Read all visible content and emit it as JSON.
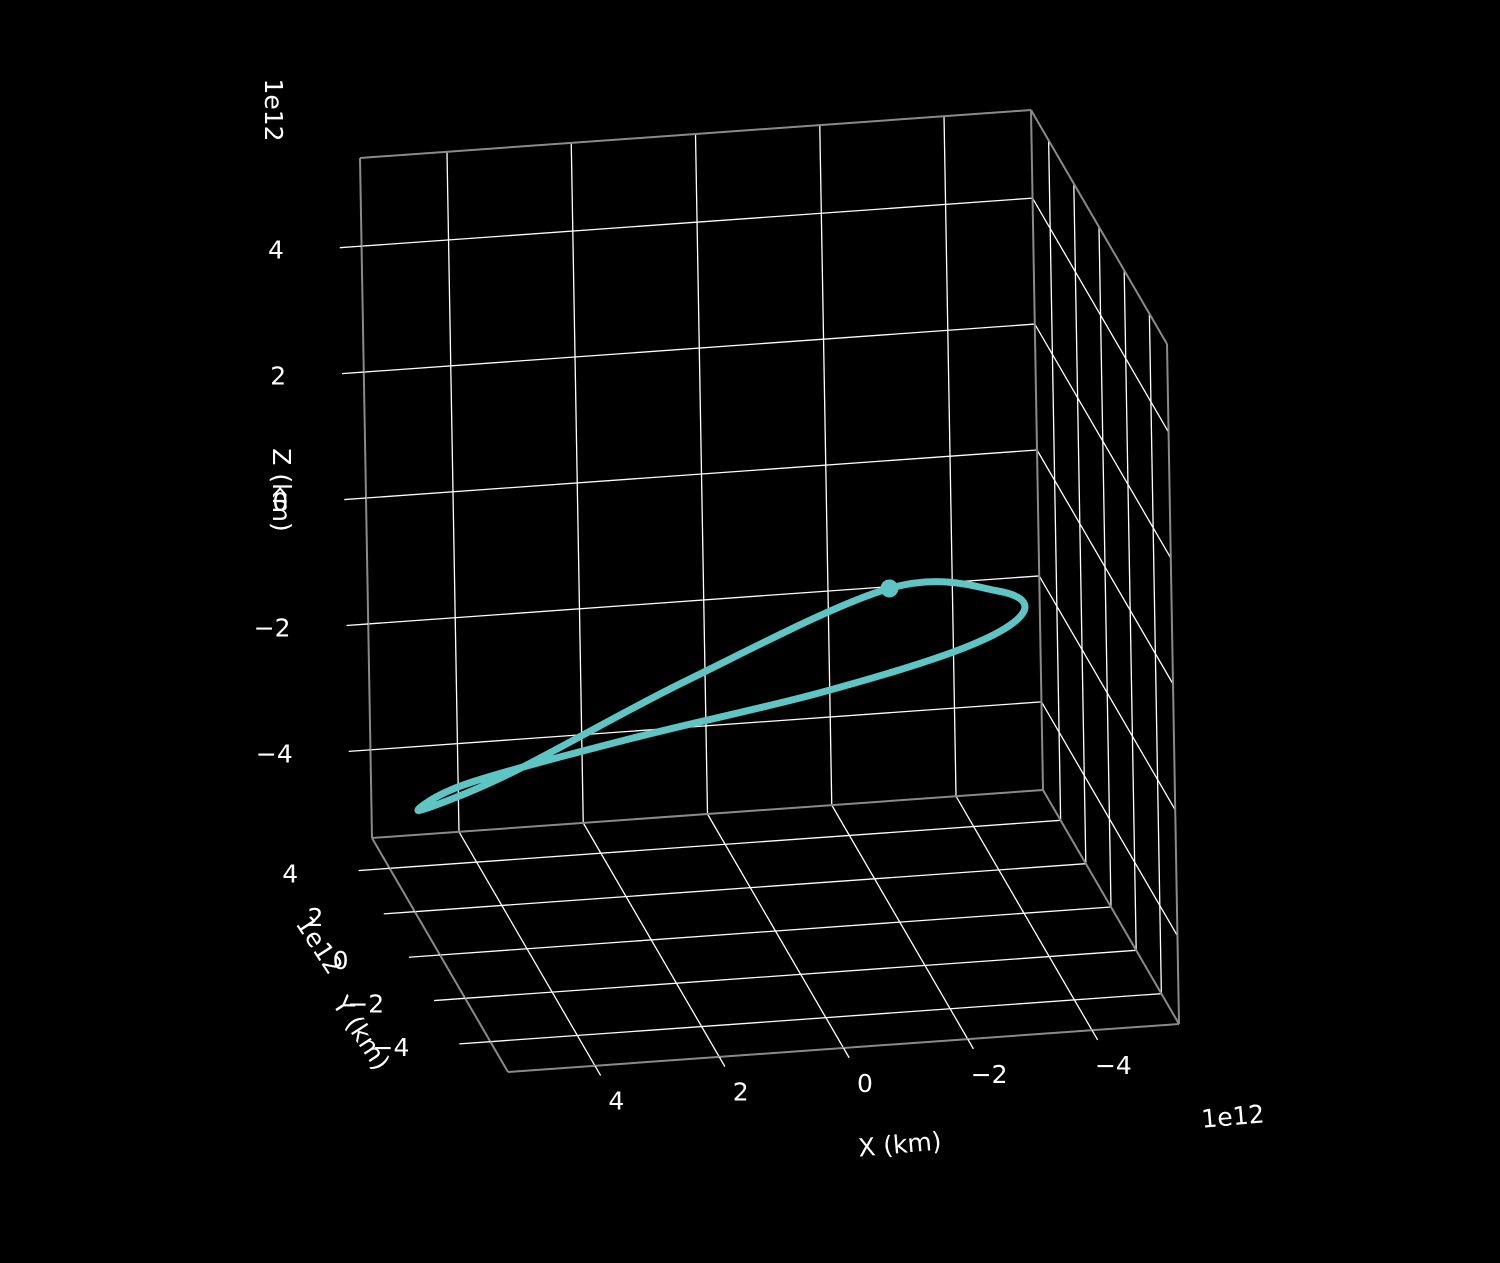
{
  "chart_data": {
    "type": "line",
    "projection": "3d",
    "background": "#000000",
    "axes": {
      "x": {
        "label": "X (km)",
        "offset_label": "1e12",
        "ticks": [
          4,
          2,
          0,
          -2,
          -4
        ],
        "tick_labels": [
          "4",
          "2",
          "0",
          "−2",
          "−4"
        ],
        "range": [
          5.4,
          -5.4
        ],
        "scale": 1000000000000.0
      },
      "y": {
        "label": "Y (km)",
        "offset_label": "1e12",
        "ticks": [
          -4,
          -2,
          0,
          2,
          4
        ],
        "tick_labels": [
          "−4",
          "−2",
          "0",
          "2",
          "4"
        ],
        "range": [
          -5.4,
          5.4
        ],
        "scale": 1000000000000.0
      },
      "z": {
        "label": "Z (km)",
        "offset_label": "1e12",
        "ticks": [
          4,
          2,
          0,
          -2,
          -4
        ],
        "tick_labels": [
          "4",
          "2",
          "0",
          "−2",
          "−4"
        ],
        "range": [
          -5.4,
          5.4
        ],
        "scale": 1000000000000.0
      }
    },
    "grid": true,
    "series": [
      {
        "kind": "orbit",
        "color": "#5ec4c4",
        "description": "closed elliptical trajectory, units of 1e12 km",
        "points": [
          {
            "x": -1.3,
            "y": -3.2,
            "z": 1.05
          },
          {
            "x": -3.2,
            "y": -2.4,
            "z": 0.6
          },
          {
            "x": -3.9,
            "y": -0.9,
            "z": -0.3
          },
          {
            "x": -3.3,
            "y": 0.8,
            "z": -1.4
          },
          {
            "x": -1.3,
            "y": 2.6,
            "z": -2.6
          },
          {
            "x": 1.5,
            "y": 3.7,
            "z": -3.5
          },
          {
            "x": 4.2,
            "y": 3.6,
            "z": -4.0
          },
          {
            "x": 5.3,
            "y": 2.0,
            "z": -3.8
          },
          {
            "x": 4.3,
            "y": -0.3,
            "z": -2.5
          },
          {
            "x": 1.8,
            "y": -2.3,
            "z": -0.5
          }
        ]
      }
    ],
    "markers": [
      {
        "x": -1.3,
        "y": -3.2,
        "z": 1.05,
        "color": "#5ec4c4"
      }
    ]
  }
}
